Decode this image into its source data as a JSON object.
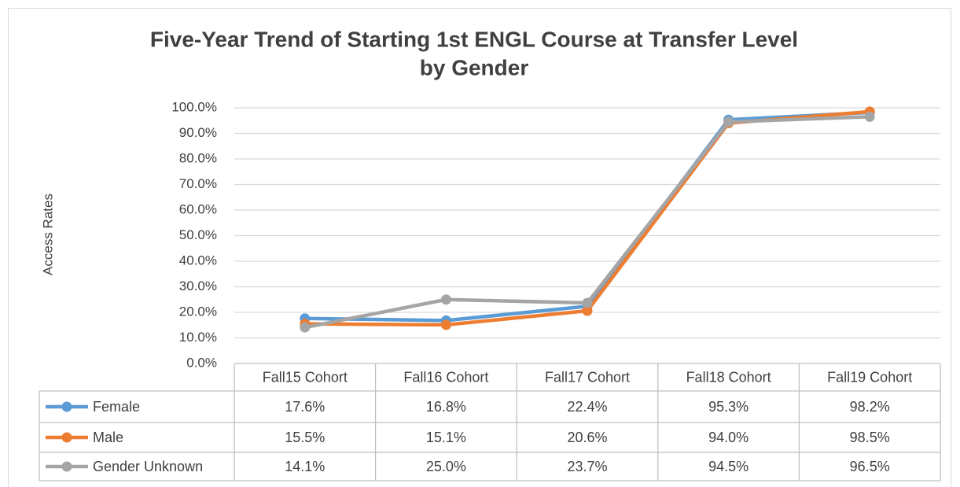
{
  "chart_data": {
    "type": "line",
    "title": [
      "Five-Year Trend of  Starting 1st ENGL Course at Transfer Level",
      "by Gender"
    ],
    "y_label": "Access Rates",
    "categories": [
      "Fall15 Cohort",
      "Fall16 Cohort",
      "Fall17 Cohort",
      "Fall18 Cohort",
      "Fall19 Cohort"
    ],
    "series": [
      {
        "name": "Female",
        "color": "#5b9bd5",
        "values": [
          17.6,
          16.8,
          22.4,
          95.3,
          98.2
        ],
        "value_labels": [
          "17.6%",
          "16.8%",
          "22.4%",
          "95.3%",
          "98.2%"
        ]
      },
      {
        "name": "Male",
        "color": "#ed7d31",
        "values": [
          15.5,
          15.1,
          20.6,
          94.0,
          98.5
        ],
        "value_labels": [
          "15.5%",
          "15.1%",
          "20.6%",
          "94.0%",
          "98.5%"
        ]
      },
      {
        "name": "Gender Unknown",
        "color": "#a5a5a5",
        "values": [
          14.1,
          25.0,
          23.7,
          94.5,
          96.5
        ],
        "value_labels": [
          "14.1%",
          "25.0%",
          "23.7%",
          "94.5%",
          "96.5%"
        ]
      }
    ],
    "ylim": [
      0,
      100
    ],
    "yticks": [
      {
        "value": 0,
        "label": "0.0%"
      },
      {
        "value": 10,
        "label": "10.0%"
      },
      {
        "value": 20,
        "label": "20.0%"
      },
      {
        "value": 30,
        "label": "30.0%"
      },
      {
        "value": 40,
        "label": "40.0%"
      },
      {
        "value": 50,
        "label": "50.0%"
      },
      {
        "value": 60,
        "label": "60.0%"
      },
      {
        "value": 70,
        "label": "70.0%"
      },
      {
        "value": 80,
        "label": "80.0%"
      },
      {
        "value": 90,
        "label": "90.0%"
      },
      {
        "value": 100,
        "label": "100.0%"
      }
    ],
    "grid": true,
    "data_table": true
  }
}
